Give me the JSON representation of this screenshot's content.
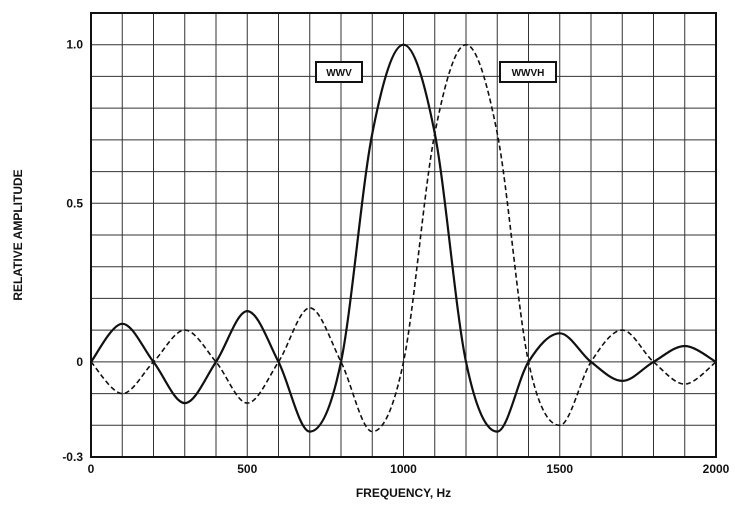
{
  "chart_data": {
    "type": "line",
    "xlabel": "FREQUENCY, Hz",
    "ylabel": "RELATIVE AMPLITUDE",
    "xlim": [
      0,
      2000
    ],
    "ylim": [
      -0.3,
      1.1
    ],
    "x_ticks": [
      "0",
      "500",
      "1000",
      "1500",
      "2000"
    ],
    "y_ticks": [
      "-0.3",
      "0",
      "0.5",
      "1.0"
    ],
    "grid": true,
    "x": [
      0,
      100,
      200,
      300,
      400,
      500,
      600,
      700,
      800,
      900,
      1000,
      1100,
      1200,
      1300,
      1400,
      1500,
      1600,
      1700,
      1800,
      1900,
      2000
    ],
    "series": [
      {
        "name": "WWV",
        "line_style": "solid",
        "values": [
          0,
          0.12,
          0,
          -0.13,
          0,
          0.16,
          0,
          -0.22,
          0,
          0.72,
          1.0,
          0.72,
          0,
          -0.22,
          0,
          0.09,
          0,
          -0.06,
          0,
          0.05,
          0
        ]
      },
      {
        "name": "WWVH",
        "line_style": "dashed",
        "values": [
          0,
          -0.1,
          0,
          0.1,
          0,
          -0.13,
          0,
          0.17,
          0,
          -0.22,
          0,
          0.72,
          1.0,
          0.72,
          0,
          -0.2,
          0,
          0.1,
          0,
          -0.07,
          0
        ]
      }
    ],
    "annotations": [
      "WWV",
      "WWVH"
    ]
  },
  "colors": {
    "line": "#111111",
    "grid": "#333333",
    "background": "#ffffff"
  }
}
